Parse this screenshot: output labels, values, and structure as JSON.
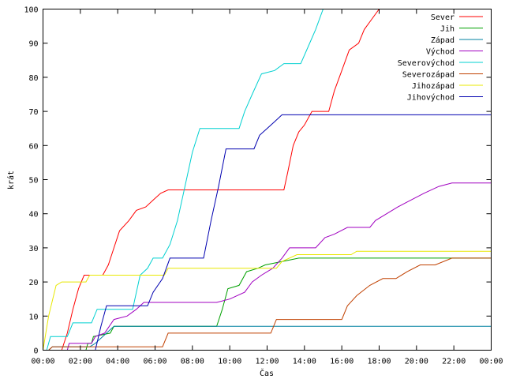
{
  "chart_data": {
    "type": "line",
    "title": "",
    "xlabel": "Čas",
    "ylabel": "krát",
    "xlim": [
      0,
      24
    ],
    "ylim": [
      0,
      100
    ],
    "x_ticks": [
      "00:00",
      "02:00",
      "04:00",
      "06:00",
      "08:00",
      "10:00",
      "12:00",
      "14:00",
      "16:00",
      "18:00",
      "20:00",
      "22:00",
      "00:00"
    ],
    "y_ticks": [
      0,
      10,
      20,
      30,
      40,
      50,
      60,
      70,
      80,
      90,
      100
    ],
    "grid": false,
    "legend_position": "top-right",
    "series": [
      {
        "name": "Sever",
        "color": "#ff0000",
        "points": [
          [
            1.0,
            0
          ],
          [
            1.3,
            5
          ],
          [
            1.6,
            12
          ],
          [
            1.9,
            18
          ],
          [
            2.2,
            22
          ],
          [
            3.2,
            22
          ],
          [
            3.5,
            25
          ],
          [
            3.8,
            30
          ],
          [
            4.1,
            35
          ],
          [
            4.6,
            38
          ],
          [
            5.0,
            41
          ],
          [
            5.5,
            42
          ],
          [
            5.9,
            44
          ],
          [
            6.3,
            46
          ],
          [
            6.7,
            47
          ],
          [
            10,
            47
          ],
          [
            12,
            47
          ],
          [
            12.9,
            47
          ],
          [
            13.1,
            52
          ],
          [
            13.4,
            60
          ],
          [
            13.7,
            64
          ],
          [
            14.0,
            66
          ],
          [
            14.4,
            70
          ],
          [
            15.3,
            70
          ],
          [
            15.6,
            76
          ],
          [
            16.0,
            82
          ],
          [
            16.4,
            88
          ],
          [
            16.9,
            90
          ],
          [
            17.2,
            94
          ],
          [
            17.6,
            97
          ],
          [
            18.0,
            100
          ],
          [
            24,
            100
          ]
        ]
      },
      {
        "name": "Jih",
        "color": "#00a000",
        "points": [
          [
            0,
            0
          ],
          [
            2.3,
            0
          ],
          [
            2.4,
            2
          ],
          [
            2.6,
            2
          ],
          [
            2.7,
            4
          ],
          [
            3.6,
            5
          ],
          [
            3.8,
            7
          ],
          [
            9.3,
            7
          ],
          [
            9.6,
            12
          ],
          [
            9.9,
            18
          ],
          [
            10.5,
            19
          ],
          [
            10.9,
            23
          ],
          [
            11.5,
            24
          ],
          [
            11.9,
            25
          ],
          [
            12.8,
            26
          ],
          [
            13.7,
            27
          ],
          [
            24,
            27
          ]
        ]
      },
      {
        "name": "Západ",
        "color": "#0080a0",
        "points": [
          [
            0,
            0
          ],
          [
            0.3,
            0
          ],
          [
            0.5,
            1
          ],
          [
            2.5,
            1
          ],
          [
            2.8,
            2
          ],
          [
            3.2,
            4
          ],
          [
            3.8,
            7
          ],
          [
            24,
            7
          ]
        ]
      },
      {
        "name": "Východ",
        "color": "#a000c0",
        "points": [
          [
            0,
            0
          ],
          [
            1.3,
            0
          ],
          [
            1.4,
            2
          ],
          [
            2.6,
            2
          ],
          [
            2.8,
            4
          ],
          [
            3.3,
            5
          ],
          [
            3.8,
            9
          ],
          [
            4.5,
            10
          ],
          [
            5.0,
            12
          ],
          [
            5.4,
            14
          ],
          [
            9.3,
            14
          ],
          [
            10.0,
            15
          ],
          [
            10.8,
            17
          ],
          [
            11.2,
            20
          ],
          [
            11.7,
            22
          ],
          [
            12.3,
            24
          ],
          [
            12.8,
            27
          ],
          [
            13.2,
            30
          ],
          [
            14.6,
            30
          ],
          [
            15.1,
            33
          ],
          [
            15.6,
            34
          ],
          [
            16.3,
            36
          ],
          [
            17.5,
            36
          ],
          [
            17.8,
            38
          ],
          [
            18.4,
            40
          ],
          [
            19.0,
            42
          ],
          [
            19.7,
            44
          ],
          [
            20.4,
            46
          ],
          [
            21.2,
            48
          ],
          [
            21.9,
            49
          ],
          [
            24,
            49
          ]
        ]
      },
      {
        "name": "Severovýchod",
        "color": "#00d0d0",
        "points": [
          [
            0,
            0
          ],
          [
            0.2,
            0
          ],
          [
            0.4,
            4
          ],
          [
            1.3,
            4
          ],
          [
            1.6,
            8
          ],
          [
            2.6,
            8
          ],
          [
            2.9,
            12
          ],
          [
            4.8,
            12
          ],
          [
            5.2,
            22
          ],
          [
            5.6,
            24
          ],
          [
            5.9,
            27
          ],
          [
            6.4,
            27
          ],
          [
            6.8,
            31
          ],
          [
            7.2,
            38
          ],
          [
            7.6,
            48
          ],
          [
            8.0,
            58
          ],
          [
            8.4,
            65
          ],
          [
            10.5,
            65
          ],
          [
            10.8,
            70
          ],
          [
            11.2,
            75
          ],
          [
            11.7,
            81
          ],
          [
            12.4,
            82
          ],
          [
            12.9,
            84
          ],
          [
            13.8,
            84
          ],
          [
            14.2,
            89
          ],
          [
            14.6,
            94
          ],
          [
            15.0,
            100
          ],
          [
            24,
            100
          ]
        ]
      },
      {
        "name": "Severozápad",
        "color": "#c04000",
        "points": [
          [
            0,
            0
          ],
          [
            0.3,
            0
          ],
          [
            0.5,
            1
          ],
          [
            6.4,
            1
          ],
          [
            6.7,
            5
          ],
          [
            12.2,
            5
          ],
          [
            12.5,
            9
          ],
          [
            16.0,
            9
          ],
          [
            16.3,
            13
          ],
          [
            16.8,
            16
          ],
          [
            17.5,
            19
          ],
          [
            18.2,
            21
          ],
          [
            18.9,
            21
          ],
          [
            19.5,
            23
          ],
          [
            20.2,
            25
          ],
          [
            21.0,
            25
          ],
          [
            21.9,
            27
          ],
          [
            24,
            27
          ]
        ]
      },
      {
        "name": "Jihozápad",
        "color": "#e8e800",
        "points": [
          [
            0,
            0
          ],
          [
            0.3,
            10
          ],
          [
            0.7,
            19
          ],
          [
            1.0,
            20
          ],
          [
            2.3,
            20
          ],
          [
            2.5,
            22
          ],
          [
            6.5,
            22
          ],
          [
            6.7,
            24
          ],
          [
            12.5,
            24
          ],
          [
            12.8,
            26
          ],
          [
            13.6,
            28
          ],
          [
            16.5,
            28
          ],
          [
            16.8,
            29
          ],
          [
            24,
            29
          ]
        ]
      },
      {
        "name": "Jihovýchod",
        "color": "#0000b0",
        "points": [
          [
            0,
            0
          ],
          [
            2.8,
            0
          ],
          [
            3.1,
            7
          ],
          [
            3.4,
            13
          ],
          [
            5.6,
            13
          ],
          [
            5.9,
            17
          ],
          [
            6.4,
            21
          ],
          [
            6.8,
            27
          ],
          [
            8.6,
            27
          ],
          [
            9.0,
            38
          ],
          [
            9.4,
            48
          ],
          [
            9.8,
            59
          ],
          [
            11.3,
            59
          ],
          [
            11.6,
            63
          ],
          [
            12.0,
            65
          ],
          [
            12.4,
            67
          ],
          [
            12.8,
            69
          ],
          [
            24,
            69
          ]
        ]
      }
    ]
  }
}
